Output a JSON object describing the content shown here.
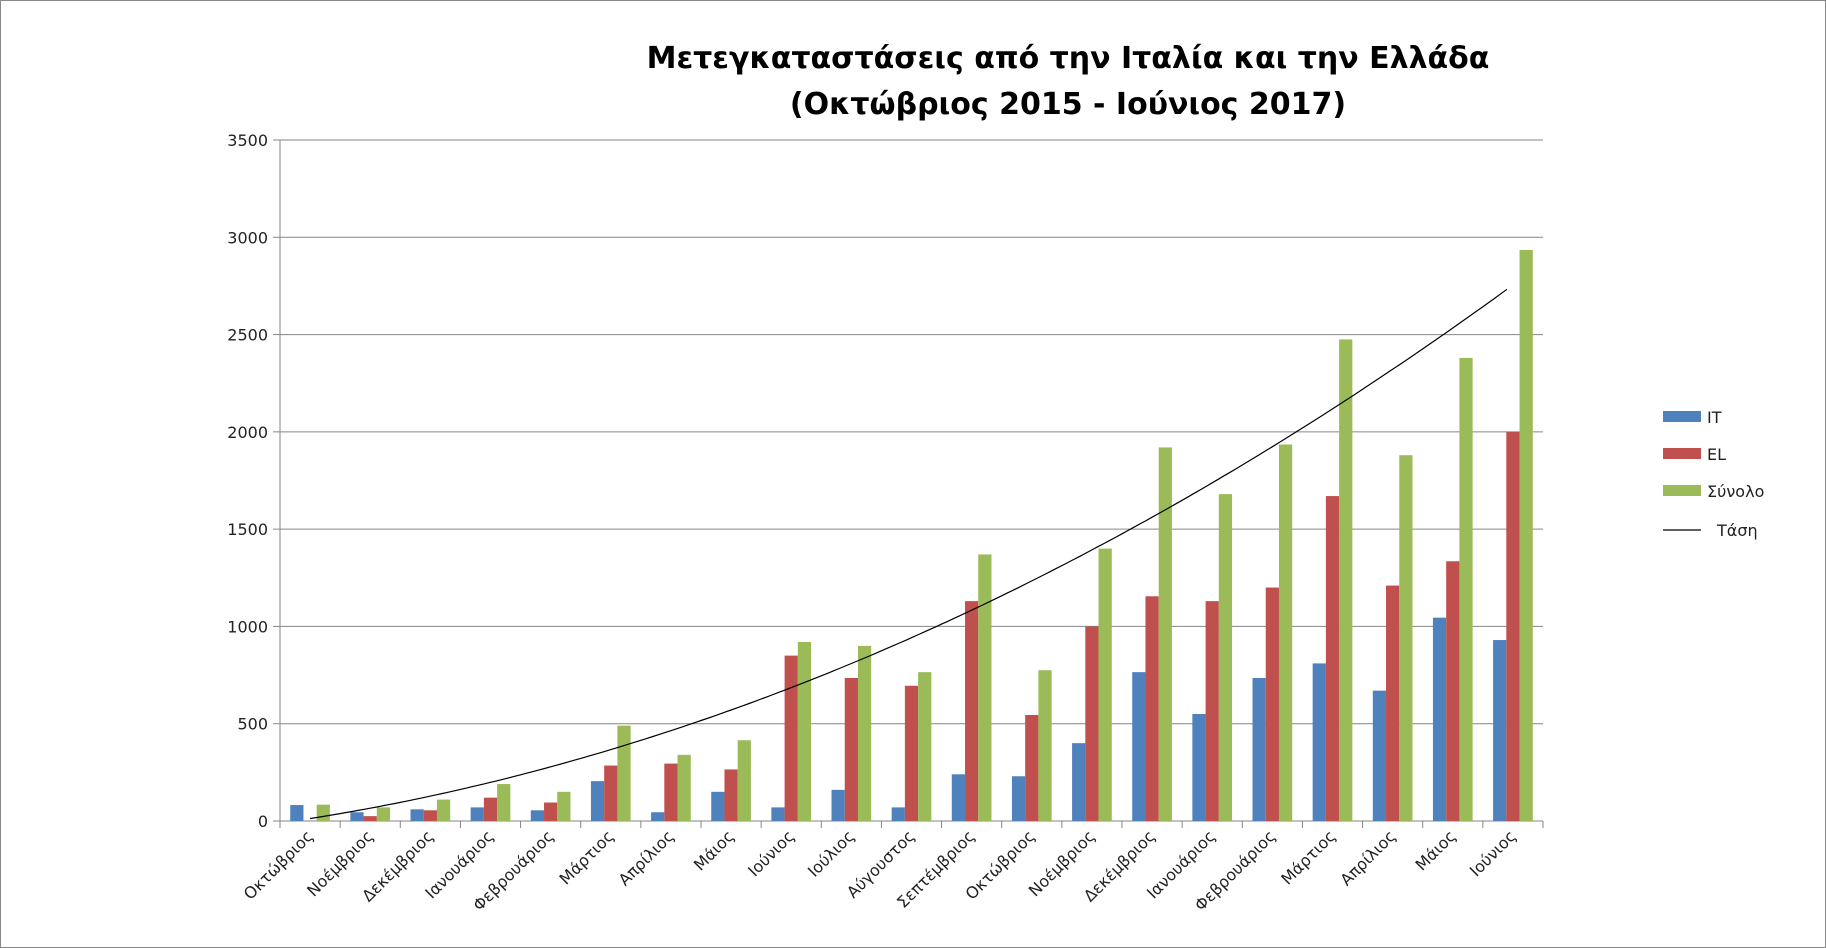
{
  "chart_data": {
    "type": "bar",
    "title": "Μετεγκαταστάσεις από την Ιταλία και την Ελλάδα",
    "subtitle": "(Οκτώβριος 2015 - Ιούνιος 2017)",
    "xlabel": "",
    "ylabel": "",
    "ylim": [
      0,
      3500
    ],
    "yticks": [
      0,
      500,
      1000,
      1500,
      2000,
      2500,
      3000,
      3500
    ],
    "grid": true,
    "legend_position": "right",
    "categories": [
      "Οκτώβριος",
      "Νοέμβριος",
      "Δεκέμβριος",
      "Ιανουάριος",
      "Φεβρουάριος",
      "Μάρτιος",
      "Απρίλιος",
      "Μάιος",
      "Ιούνιος",
      "Ιούλιος",
      "Αύγουστος",
      "Σεπτέμβριος",
      "Οκτώβριος",
      "Νοέμβριος",
      "Δεκέμβριος",
      "Ιανουάριος",
      "Φεβρουάριος",
      "Μάρτιος",
      "Απρίλιος",
      "Μάιος",
      "Ιούνιος"
    ],
    "series": [
      {
        "name": "IT",
        "color": "#4f81bd",
        "values": [
          82,
          45,
          60,
          70,
          55,
          205,
          45,
          150,
          70,
          160,
          70,
          240,
          230,
          400,
          765,
          550,
          735,
          810,
          670,
          1045,
          930
        ]
      },
      {
        "name": "EL",
        "color": "#c0504d",
        "values": [
          0,
          25,
          55,
          120,
          95,
          285,
          295,
          265,
          850,
          735,
          695,
          1130,
          545,
          1000,
          1155,
          1130,
          1200,
          1670,
          1210,
          1335,
          2000
        ]
      },
      {
        "name": "Σύνολο",
        "color": "#9bbb59",
        "values": [
          84,
          70,
          110,
          190,
          150,
          490,
          340,
          415,
          920,
          900,
          765,
          1370,
          775,
          1400,
          1920,
          1680,
          1935,
          2475,
          1880,
          2380,
          2935
        ]
      }
    ],
    "trendline": {
      "name": "Τάση",
      "of_series": "Σύνολο",
      "type": "polynomial-2",
      "color": "#000000"
    }
  }
}
